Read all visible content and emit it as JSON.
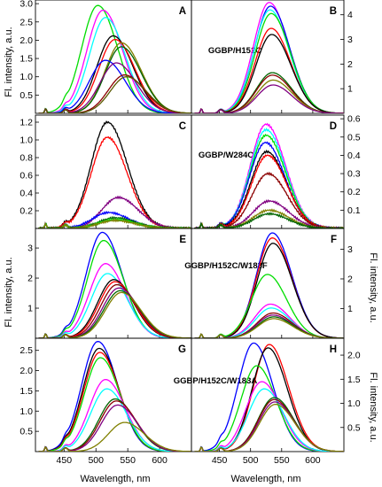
{
  "figure": {
    "ylabel": "Fl. intensity, a.u.",
    "xlabel": "Wavelength, nm"
  },
  "chart_data": [
    {
      "panel": "A",
      "type": "line",
      "annotation": "GGBP/H152C",
      "xlim": [
        405,
        650
      ],
      "ylim": [
        0,
        3.1
      ],
      "xticks": [
        450,
        500,
        550,
        600
      ],
      "yticks": [
        0.5,
        1.0,
        1.5,
        2.0,
        2.5,
        3.0
      ],
      "ytick_labels": [
        "0.5",
        "1.0",
        "1.5",
        "2.0",
        "2.5",
        "3.0"
      ],
      "series": [
        {
          "color": "#00dd00",
          "peak_x": 503,
          "peak_y": 2.95
        },
        {
          "color": "#ff00ff",
          "peak_x": 511,
          "peak_y": 2.82
        },
        {
          "color": "#00ffff",
          "peak_x": 515,
          "peak_y": 2.62
        },
        {
          "color": "#000000",
          "peak_x": 527,
          "peak_y": 2.12
        },
        {
          "color": "#ff0000",
          "peak_x": 530,
          "peak_y": 2.02
        },
        {
          "color": "#808000",
          "peak_x": 540,
          "peak_y": 1.93
        },
        {
          "color": "#006400",
          "peak_x": 540,
          "peak_y": 1.82
        },
        {
          "color": "#0000ff",
          "peak_x": 515,
          "peak_y": 1.45
        },
        {
          "color": "#800080",
          "peak_x": 532,
          "peak_y": 1.38
        },
        {
          "color": "#8b0000",
          "peak_x": 545,
          "peak_y": 1.05
        },
        {
          "color": "#5a5a00",
          "peak_x": 548,
          "peak_y": 1.0
        }
      ]
    },
    {
      "panel": "B",
      "type": "line",
      "xlim": [
        405,
        650
      ],
      "ylim": [
        0,
        4.6
      ],
      "xticks": [
        450,
        500,
        550,
        600
      ],
      "yticks": [
        1,
        2,
        3,
        4
      ],
      "ytick_labels": [
        "1",
        "2",
        "3",
        "4"
      ],
      "series": [
        {
          "color": "#ff00ff",
          "peak_x": 530,
          "peak_y": 4.5
        },
        {
          "color": "#0000ff",
          "peak_x": 532,
          "peak_y": 4.35
        },
        {
          "color": "#00ffff",
          "peak_x": 531,
          "peak_y": 4.2
        },
        {
          "color": "#00dd00",
          "peak_x": 533,
          "peak_y": 4.05
        },
        {
          "color": "#ff0000",
          "peak_x": 533,
          "peak_y": 3.45
        },
        {
          "color": "#000000",
          "peak_x": 534,
          "peak_y": 3.2
        },
        {
          "color": "#006400",
          "peak_x": 535,
          "peak_y": 1.65
        },
        {
          "color": "#8b0000",
          "peak_x": 535,
          "peak_y": 1.55
        },
        {
          "color": "#808000",
          "peak_x": 536,
          "peak_y": 1.35
        },
        {
          "color": "#800080",
          "peak_x": 536,
          "peak_y": 1.15
        }
      ]
    },
    {
      "panel": "C",
      "type": "line",
      "annotation": "GGBP/W284C",
      "xlim": [
        405,
        650
      ],
      "ylim": [
        0,
        1.28
      ],
      "xticks": [
        450,
        500,
        550,
        600
      ],
      "yticks": [
        0.2,
        0.4,
        0.6,
        0.8,
        1.0,
        1.2
      ],
      "ytick_labels": [
        "0.2",
        "0.4",
        "0.6",
        "0.8",
        "1.0",
        "1.2"
      ],
      "series": [
        {
          "color": "#000000",
          "peak_x": 518,
          "peak_y": 1.2
        },
        {
          "color": "#ff0000",
          "peak_x": 518,
          "peak_y": 1.03
        },
        {
          "color": "#800080",
          "peak_x": 535,
          "peak_y": 0.35
        },
        {
          "color": "#0000ff",
          "peak_x": 520,
          "peak_y": 0.18
        },
        {
          "color": "#006400",
          "peak_x": 530,
          "peak_y": 0.12
        },
        {
          "color": "#00dd00",
          "peak_x": 530,
          "peak_y": 0.1
        },
        {
          "color": "#808000",
          "peak_x": 530,
          "peak_y": 0.09
        }
      ]
    },
    {
      "panel": "D",
      "type": "line",
      "xlim": [
        405,
        650
      ],
      "ylim": [
        0,
        0.62
      ],
      "xticks": [
        450,
        500,
        550,
        600
      ],
      "yticks": [
        0.1,
        0.2,
        0.3,
        0.4,
        0.5,
        0.6
      ],
      "ytick_labels": [
        "0.1",
        "0.2",
        "0.3",
        "0.4",
        "0.5",
        "0.6"
      ],
      "series": [
        {
          "color": "#ff00ff",
          "peak_x": 525,
          "peak_y": 0.57
        },
        {
          "color": "#00ffff",
          "peak_x": 525,
          "peak_y": 0.54
        },
        {
          "color": "#00dd00",
          "peak_x": 525,
          "peak_y": 0.51
        },
        {
          "color": "#0000ff",
          "peak_x": 524,
          "peak_y": 0.47
        },
        {
          "color": "#000000",
          "peak_x": 526,
          "peak_y": 0.42
        },
        {
          "color": "#ff0000",
          "peak_x": 527,
          "peak_y": 0.4
        },
        {
          "color": "#8b0000",
          "peak_x": 528,
          "peak_y": 0.3
        },
        {
          "color": "#800080",
          "peak_x": 530,
          "peak_y": 0.15
        },
        {
          "color": "#808000",
          "peak_x": 530,
          "peak_y": 0.1
        },
        {
          "color": "#006400",
          "peak_x": 530,
          "peak_y": 0.08
        }
      ]
    },
    {
      "panel": "E",
      "type": "line",
      "annotation": "GGBP/H152C/W183F",
      "xlim": [
        405,
        650
      ],
      "ylim": [
        0,
        3.65
      ],
      "xticks": [
        450,
        500,
        550,
        600
      ],
      "yticks": [
        1,
        2,
        3
      ],
      "ytick_labels": [
        "1",
        "2",
        "3"
      ],
      "series": [
        {
          "color": "#0000ff",
          "peak_x": 510,
          "peak_y": 3.52
        },
        {
          "color": "#00dd00",
          "peak_x": 512,
          "peak_y": 3.25
        },
        {
          "color": "#ff00ff",
          "peak_x": 515,
          "peak_y": 2.48
        },
        {
          "color": "#00ffff",
          "peak_x": 518,
          "peak_y": 2.15
        },
        {
          "color": "#000000",
          "peak_x": 528,
          "peak_y": 1.95
        },
        {
          "color": "#ff0000",
          "peak_x": 530,
          "peak_y": 1.88
        },
        {
          "color": "#8b0000",
          "peak_x": 533,
          "peak_y": 1.78
        },
        {
          "color": "#800080",
          "peak_x": 536,
          "peak_y": 1.67
        },
        {
          "color": "#006400",
          "peak_x": 538,
          "peak_y": 1.58
        },
        {
          "color": "#808000",
          "peak_x": 540,
          "peak_y": 1.52
        }
      ]
    },
    {
      "panel": "F",
      "type": "line",
      "xlim": [
        405,
        650
      ],
      "ylim": [
        0,
        3.7
      ],
      "xticks": [
        450,
        500,
        550,
        600
      ],
      "yticks": [
        1,
        2,
        3
      ],
      "ytick_labels": [
        "1",
        "2",
        "3"
      ],
      "series": [
        {
          "color": "#0000ff",
          "peak_x": 535,
          "peak_y": 3.55
        },
        {
          "color": "#ff0000",
          "peak_x": 535,
          "peak_y": 3.38
        },
        {
          "color": "#000000",
          "peak_x": 536,
          "peak_y": 3.2
        },
        {
          "color": "#00dd00",
          "peak_x": 527,
          "peak_y": 2.15
        },
        {
          "color": "#ff00ff",
          "peak_x": 532,
          "peak_y": 1.15
        },
        {
          "color": "#00ffff",
          "peak_x": 533,
          "peak_y": 1.02
        },
        {
          "color": "#8b0000",
          "peak_x": 536,
          "peak_y": 0.85
        },
        {
          "color": "#800080",
          "peak_x": 536,
          "peak_y": 0.78
        },
        {
          "color": "#006400",
          "peak_x": 537,
          "peak_y": 0.72
        },
        {
          "color": "#808000",
          "peak_x": 537,
          "peak_y": 0.66
        }
      ]
    },
    {
      "panel": "G",
      "type": "line",
      "annotation": "GGBP/H152C/W183A",
      "xlim": [
        405,
        650
      ],
      "ylim": [
        0,
        2.8
      ],
      "xticks": [
        450,
        500,
        550,
        600
      ],
      "yticks": [
        0.5,
        1.0,
        1.5,
        2.0,
        2.5
      ],
      "ytick_labels": [
        "0.5",
        "1.0",
        "1.5",
        "2.0",
        "2.5"
      ],
      "series": [
        {
          "color": "#0000ff",
          "peak_x": 503,
          "peak_y": 2.72
        },
        {
          "color": "#000000",
          "peak_x": 505,
          "peak_y": 2.55
        },
        {
          "color": "#ff0000",
          "peak_x": 506,
          "peak_y": 2.45
        },
        {
          "color": "#00dd00",
          "peak_x": 507,
          "peak_y": 2.32
        },
        {
          "color": "#ff00ff",
          "peak_x": 515,
          "peak_y": 1.78
        },
        {
          "color": "#00ffff",
          "peak_x": 517,
          "peak_y": 1.55
        },
        {
          "color": "#006400",
          "peak_x": 530,
          "peak_y": 1.3
        },
        {
          "color": "#8b0000",
          "peak_x": 532,
          "peak_y": 1.25
        },
        {
          "color": "#800080",
          "peak_x": 534,
          "peak_y": 1.15
        },
        {
          "color": "#808000",
          "peak_x": 545,
          "peak_y": 0.72
        }
      ]
    },
    {
      "panel": "H",
      "type": "line",
      "xlim": [
        405,
        650
      ],
      "ylim": [
        0,
        2.35
      ],
      "xticks": [
        450,
        500,
        550,
        600
      ],
      "yticks": [
        0.5,
        1.0,
        1.5,
        2.0
      ],
      "ytick_labels": [
        "0.5",
        "1.0",
        "1.5",
        "2.0"
      ],
      "series": [
        {
          "color": "#0000ff",
          "peak_x": 505,
          "peak_y": 2.25
        },
        {
          "color": "#ff0000",
          "peak_x": 530,
          "peak_y": 2.22
        },
        {
          "color": "#000000",
          "peak_x": 528,
          "peak_y": 2.15
        },
        {
          "color": "#00dd00",
          "peak_x": 510,
          "peak_y": 1.78
        },
        {
          "color": "#ff00ff",
          "peak_x": 518,
          "peak_y": 1.45
        },
        {
          "color": "#00ffff",
          "peak_x": 522,
          "peak_y": 1.3
        },
        {
          "color": "#006400",
          "peak_x": 538,
          "peak_y": 1.12
        },
        {
          "color": "#8b0000",
          "peak_x": 538,
          "peak_y": 1.08
        },
        {
          "color": "#800080",
          "peak_x": 539,
          "peak_y": 1.03
        },
        {
          "color": "#808000",
          "peak_x": 540,
          "peak_y": 0.98
        }
      ]
    }
  ]
}
